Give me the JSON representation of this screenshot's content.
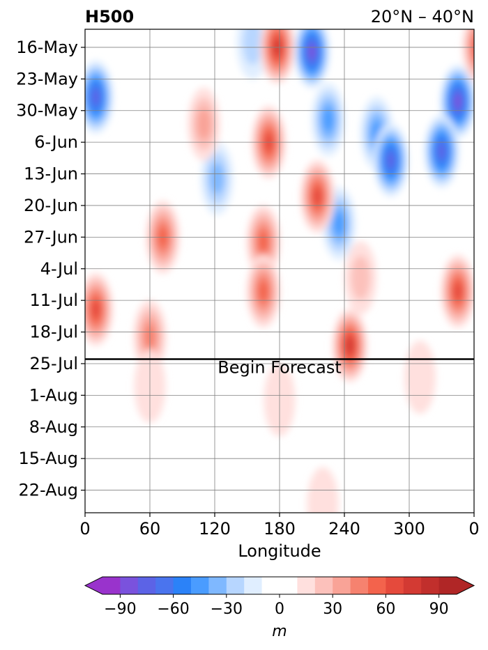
{
  "chart_data": {
    "type": "heatmap",
    "title": "H500",
    "region": "20°N – 40°N",
    "xlabel": "Longitude",
    "ylabel": "",
    "x_ticks": [
      "0",
      "60",
      "120",
      "180",
      "240",
      "300",
      "0"
    ],
    "x_tick_values": [
      0,
      60,
      120,
      180,
      240,
      300,
      360
    ],
    "xlim": [
      0,
      360
    ],
    "y_ticks": [
      "16-May",
      "23-May",
      "30-May",
      "6-Jun",
      "13-Jun",
      "20-Jun",
      "27-Jun",
      "4-Jul",
      "11-Jul",
      "18-Jul",
      "25-Jul",
      "1-Aug",
      "8-Aug",
      "15-Aug",
      "22-Aug"
    ],
    "date_range": [
      "2025-05-12",
      "2025-08-27"
    ],
    "grid": true,
    "forecast_label": "Begin Forecast",
    "forecast_date": "2025-07-24",
    "colorbar": {
      "label": "m",
      "ticks": [
        "−90",
        "−60",
        "−30",
        "0",
        "30",
        "60",
        "90"
      ],
      "tick_values": [
        -90,
        -60,
        -30,
        0,
        30,
        60,
        90
      ],
      "levels": [
        -100,
        -90,
        -80,
        -70,
        -60,
        -50,
        -40,
        -30,
        -20,
        -10,
        10,
        20,
        30,
        40,
        50,
        60,
        70,
        80,
        90,
        100
      ],
      "colors": [
        "#9933cc",
        "#7a52dd",
        "#5c63e6",
        "#4a74ee",
        "#2b82f8",
        "#4a9cff",
        "#7fb8ff",
        "#b7d6ff",
        "#e0eeff",
        "#ffffff",
        "#ffe0de",
        "#fcc1bb",
        "#f9a397",
        "#f6826f",
        "#f3634c",
        "#e54a3c",
        "#d33a33",
        "#c12f2c",
        "#b02626"
      ],
      "extend": "both"
    },
    "anomalies": [
      {
        "lon": 10,
        "date": "2025-05-27",
        "value": -75
      },
      {
        "lon": 345,
        "date": "2025-05-28",
        "value": -80
      },
      {
        "lon": 210,
        "date": "2025-05-17",
        "value": -85
      },
      {
        "lon": 270,
        "date": "2025-06-04",
        "value": -40
      },
      {
        "lon": 225,
        "date": "2025-06-01",
        "value": -45
      },
      {
        "lon": 283,
        "date": "2025-06-10",
        "value": -70
      },
      {
        "lon": 330,
        "date": "2025-06-08",
        "value": -75
      },
      {
        "lon": 155,
        "date": "2025-05-15",
        "value": -25
      },
      {
        "lon": 122,
        "date": "2025-06-14",
        "value": -35
      },
      {
        "lon": 235,
        "date": "2025-06-24",
        "value": -40
      },
      {
        "lon": 178,
        "date": "2025-05-16",
        "value": 70
      },
      {
        "lon": 365,
        "date": "2025-05-16",
        "value": 60
      },
      {
        "lon": 170,
        "date": "2025-06-06",
        "value": 60
      },
      {
        "lon": 215,
        "date": "2025-06-18",
        "value": 65
      },
      {
        "lon": 110,
        "date": "2025-06-02",
        "value": 30
      },
      {
        "lon": 72,
        "date": "2025-06-27",
        "value": 50
      },
      {
        "lon": 165,
        "date": "2025-06-28",
        "value": 50
      },
      {
        "lon": 165,
        "date": "2025-07-09",
        "value": 55
      },
      {
        "lon": 10,
        "date": "2025-07-13",
        "value": 65
      },
      {
        "lon": 245,
        "date": "2025-07-21",
        "value": 70
      },
      {
        "lon": 345,
        "date": "2025-07-09",
        "value": 60
      },
      {
        "lon": 60,
        "date": "2025-07-19",
        "value": 40
      },
      {
        "lon": 255,
        "date": "2025-07-06",
        "value": 25
      },
      {
        "lon": 180,
        "date": "2025-08-02",
        "value": 12
      },
      {
        "lon": 60,
        "date": "2025-07-30",
        "value": 12
      },
      {
        "lon": 310,
        "date": "2025-07-28",
        "value": 12
      },
      {
        "lon": 220,
        "date": "2025-08-25",
        "value": 12
      }
    ]
  }
}
